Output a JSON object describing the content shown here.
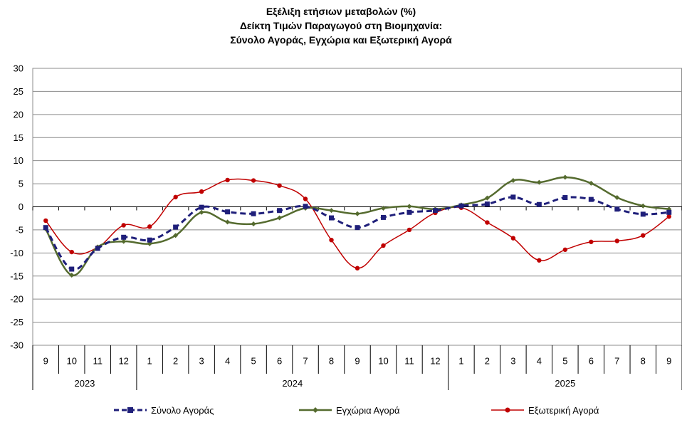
{
  "title_lines": [
    "Εξέλιξη ετήσιων μεταβολών (%)",
    "Δείκτη Τιμών Παραγωγού στη Βιομηχανία:",
    "Σύνολο Αγοράς, Εγχώρια και Εξωτερική Αγορά"
  ],
  "chart_data": {
    "type": "line",
    "title": "Εξέλιξη ετήσιων μεταβολών (%) Δείκτη Τιμών Παραγωγού στη Βιομηχανία: Σύνολο Αγοράς, Εγχώρια και Εξωτερική Αγορά",
    "categories": [
      "9",
      "10",
      "11",
      "12",
      "1",
      "2",
      "3",
      "4",
      "5",
      "6",
      "7",
      "8",
      "9",
      "10",
      "11",
      "12",
      "1",
      "2",
      "3",
      "4",
      "5",
      "6",
      "7",
      "8",
      "9"
    ],
    "year_groups": [
      {
        "label": "2023",
        "start": 0,
        "end": 3
      },
      {
        "label": "2024",
        "start": 4,
        "end": 15
      },
      {
        "label": "2025",
        "start": 16,
        "end": 24
      }
    ],
    "ylim": [
      -30,
      30
    ],
    "yticks": [
      30,
      25,
      20,
      15,
      10,
      5,
      0,
      -5,
      -10,
      -15,
      -20,
      -25,
      -30
    ],
    "grid": true,
    "legend_position": "bottom",
    "series": [
      {
        "name": "Σύνολο Αγοράς",
        "color": "#1f1f7a",
        "style": "dashed",
        "marker": "square",
        "values": [
          -4.5,
          -13.5,
          -9.0,
          -6.6,
          -7.2,
          -4.4,
          -0.1,
          -1.1,
          -1.5,
          -0.8,
          0.1,
          -2.4,
          -4.5,
          -2.3,
          -1.2,
          -0.8,
          0.2,
          0.6,
          2.1,
          0.5,
          2.0,
          1.6,
          -0.5,
          -1.6,
          -1.2
        ]
      },
      {
        "name": "Εγχώρια Αγορά",
        "color": "#556b2f",
        "style": "solid",
        "marker": "diamond",
        "values": [
          -4.8,
          -14.8,
          -8.7,
          -7.5,
          -8.0,
          -6.2,
          -1.2,
          -3.3,
          -3.7,
          -2.4,
          -0.3,
          -0.8,
          -1.5,
          -0.3,
          0.1,
          -0.5,
          0.4,
          1.9,
          5.7,
          5.3,
          6.4,
          5.1,
          2.0,
          0.2,
          -0.5
        ]
      },
      {
        "name": "Εξωτερική Αγορά",
        "color": "#c00000",
        "style": "solid",
        "marker": "circle",
        "values": [
          -3.0,
          -9.8,
          -8.8,
          -4.0,
          -4.3,
          2.1,
          3.3,
          5.8,
          5.7,
          4.6,
          1.7,
          -7.2,
          -13.3,
          -8.4,
          -5.0,
          -1.3,
          -0.2,
          -3.4,
          -6.8,
          -11.6,
          -9.3,
          -7.6,
          -7.4,
          -6.2,
          -2.1
        ]
      }
    ]
  }
}
